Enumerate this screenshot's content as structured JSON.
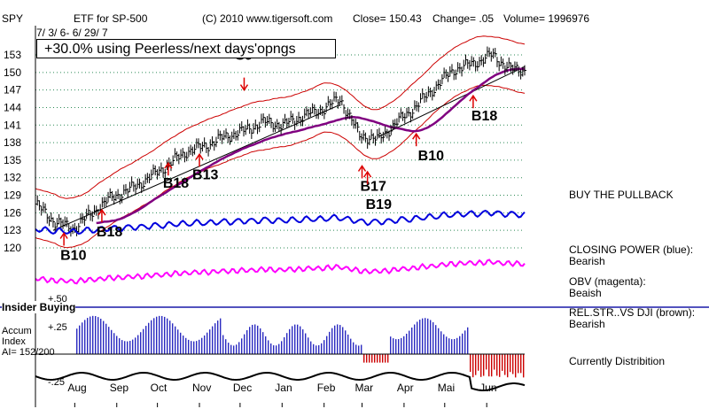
{
  "header": {
    "symbol": "SPY",
    "title": "ETF for SP-500",
    "copyright": "(C) 2010 www.tigersoft.com",
    "close": "Close= 150.43",
    "change": "Change= .05",
    "volume": "Volume= 1996976",
    "date_range": "7/ 3/ 6- 6/ 29/ 7",
    "performance": "+30.0% using Peerless/next days'opngs"
  },
  "side_labels": {
    "buy_pullback": "BUY THE PULLBACK",
    "closing_power": "CLOSING POWER (blue):",
    "closing_power_status": "Bearish",
    "obv": "OBV (magenta):",
    "obv_status": "Beaish",
    "relstr": "REL.STR..VS DJI (brown):",
    "relstr_status": "Bearish",
    "distribution": "Currently Distribition"
  },
  "lower_panel": {
    "insider": "Insider Buying",
    "accum_line1": "Accum",
    "accum_line2": "Index",
    "ai": "AI= 152/200",
    "tick_plus50": "+.50",
    "tick_plus25": "+.25",
    "tick_minus25": "-.25"
  },
  "colors": {
    "price": "#000000",
    "bands": "#cc0000",
    "closing_power": "#0000dd",
    "obv": "#ff00ff",
    "ma": "#800080",
    "signals": "#dd0000",
    "accum_pos": "#2a2ac0",
    "accum_neg": "#cc0000",
    "grid": "#2e8b57"
  },
  "chart_data": {
    "type": "line",
    "title": "ETF for SP-500",
    "y_ticks": [
      153,
      150,
      147,
      144,
      141,
      138,
      135,
      132,
      129,
      126,
      123,
      120
    ],
    "ylim": [
      118.5,
      155.5
    ],
    "x_ticks": [
      "Aug",
      "Sep",
      "Oct",
      "Nov",
      "Dec",
      "Jan",
      "Feb",
      "Mar",
      "Apr",
      "Mai",
      "Jun"
    ],
    "x": [
      "2006-07-03",
      "2006-07-17",
      "2006-07-31",
      "2006-08-14",
      "2006-08-28",
      "2006-09-11",
      "2006-09-25",
      "2006-10-09",
      "2006-10-23",
      "2006-11-06",
      "2006-11-20",
      "2006-12-04",
      "2006-12-18",
      "2007-01-02",
      "2007-01-16",
      "2007-01-30",
      "2007-02-13",
      "2007-02-27",
      "2007-03-13",
      "2007-03-27",
      "2007-04-10",
      "2007-04-24",
      "2007-05-08",
      "2007-05-22",
      "2007-06-05",
      "2007-06-19",
      "2007-06-29"
    ],
    "series": [
      {
        "values": [
          127.5,
          124.5,
          123.3,
          126.0,
          128.6,
          130.0,
          132.0,
          134.2,
          136.5,
          137.5,
          139.0,
          140.0,
          141.5,
          141.0,
          142.5,
          143.6,
          145.5,
          139.3,
          138.5,
          141.5,
          144.2,
          147.5,
          150.5,
          151.5,
          153.0,
          150.5,
          150.4
        ]
      }
    ],
    "signals": [
      "B10",
      "B18",
      "B18",
      "B13",
      "S9",
      "B17",
      "B19",
      "B10",
      "B18"
    ]
  }
}
